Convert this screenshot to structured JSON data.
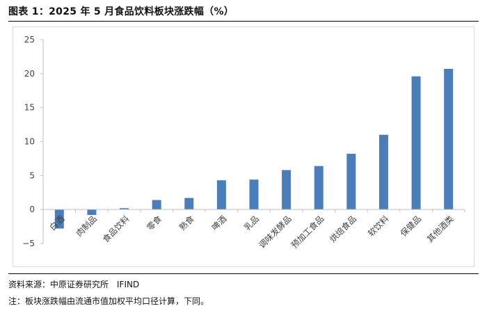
{
  "title": "图表 1：2025 年 5 月食品饮料板块涨跌幅（%）",
  "source": "资料来源：中原证券研究所　IFIND",
  "note": "注：板块涨跌幅由流通市值加权平均口径计算，下同。",
  "colors": {
    "bar": "#4a7ebb",
    "axis": "#bfbfbf",
    "text": "#404040"
  },
  "chart_data": {
    "type": "bar",
    "title": "2025 年 5 月食品饮料板块涨跌幅（%）",
    "xlabel": "",
    "ylabel": "",
    "ylim": [
      -5,
      25
    ],
    "yticks": [
      -5,
      0,
      5,
      10,
      15,
      20,
      25
    ],
    "grid": false,
    "categories": [
      "白酒",
      "肉制品",
      "食品饮料",
      "零食",
      "熟食",
      "啤酒",
      "乳品",
      "调味发酵品",
      "预加工食品",
      "烘焙食品",
      "软饮料",
      "保健品",
      "其他酒类"
    ],
    "values": [
      -2.8,
      -0.8,
      0.2,
      1.4,
      1.7,
      4.3,
      4.4,
      5.8,
      6.4,
      8.2,
      11.0,
      19.6,
      20.7
    ]
  }
}
